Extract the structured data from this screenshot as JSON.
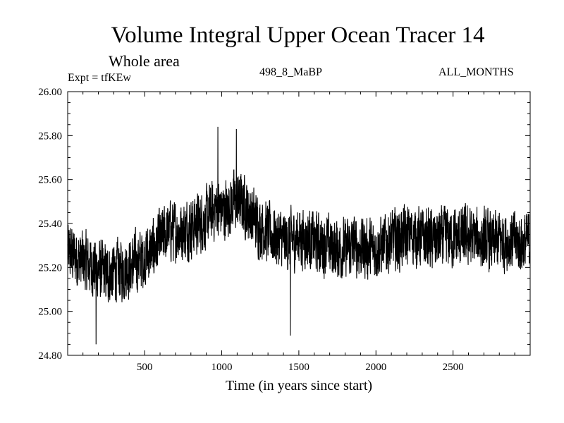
{
  "header": {
    "title": "Volume Integral Upper Ocean Tracer 14",
    "subtitle": "Whole area",
    "experiment": "Expt = tfKEw",
    "period": "498_8_MaBP",
    "months": "ALL_MONTHS"
  },
  "chart_data": {
    "type": "line",
    "title": "Volume Integral Upper Ocean Tracer 14",
    "subtitle": "Whole area",
    "xlabel": "Time (in years since start)",
    "ylabel": "",
    "xlim": [
      1,
      3000
    ],
    "ylim": [
      24.8,
      26.0
    ],
    "x_ticks": [
      500,
      1000,
      1500,
      2000,
      2500
    ],
    "y_ticks": [
      24.8,
      25.0,
      25.2,
      25.4,
      25.6,
      25.8,
      26.0
    ],
    "y_tick_labels": [
      "24.80",
      "25.00",
      "25.20",
      "25.40",
      "25.60",
      "25.80",
      "26.00"
    ],
    "grid": false,
    "line_color": "#000000",
    "series": [
      {
        "x": [
          1,
          60,
          120,
          180,
          240,
          300,
          360,
          420,
          480,
          540,
          600,
          660,
          720,
          780,
          840,
          900,
          960,
          1020,
          1080,
          1140,
          1200,
          1260,
          1320,
          1380,
          1440,
          1500,
          1560,
          1620,
          1680,
          1740,
          1800,
          1860,
          1920,
          1980,
          2040,
          2100,
          2160,
          2220,
          2280,
          2340,
          2400,
          2460,
          2520,
          2580,
          2640,
          2700,
          2760,
          2820,
          2880,
          2940,
          3000
        ],
        "values": [
          25.27,
          25.24,
          25.22,
          25.2,
          25.17,
          25.18,
          25.19,
          25.21,
          25.24,
          25.27,
          25.32,
          25.37,
          25.36,
          25.38,
          25.4,
          25.42,
          25.47,
          25.46,
          25.5,
          25.49,
          25.43,
          25.38,
          25.35,
          25.33,
          25.32,
          25.34,
          25.33,
          25.31,
          25.3,
          25.29,
          25.28,
          25.3,
          25.29,
          25.28,
          25.3,
          25.32,
          25.33,
          25.35,
          25.34,
          25.33,
          25.32,
          25.34,
          25.33,
          25.34,
          25.33,
          25.32,
          25.31,
          25.33,
          25.32,
          25.31,
          25.32
        ],
        "sampling": "annual values, interpolated mean with high-frequency variability of about ±0.12"
      }
    ],
    "extremes": [
      {
        "x": 975,
        "y": 25.84
      },
      {
        "x": 1095,
        "y": 25.83
      },
      {
        "x": 185,
        "y": 24.85
      },
      {
        "x": 1445,
        "y": 24.89
      }
    ]
  }
}
